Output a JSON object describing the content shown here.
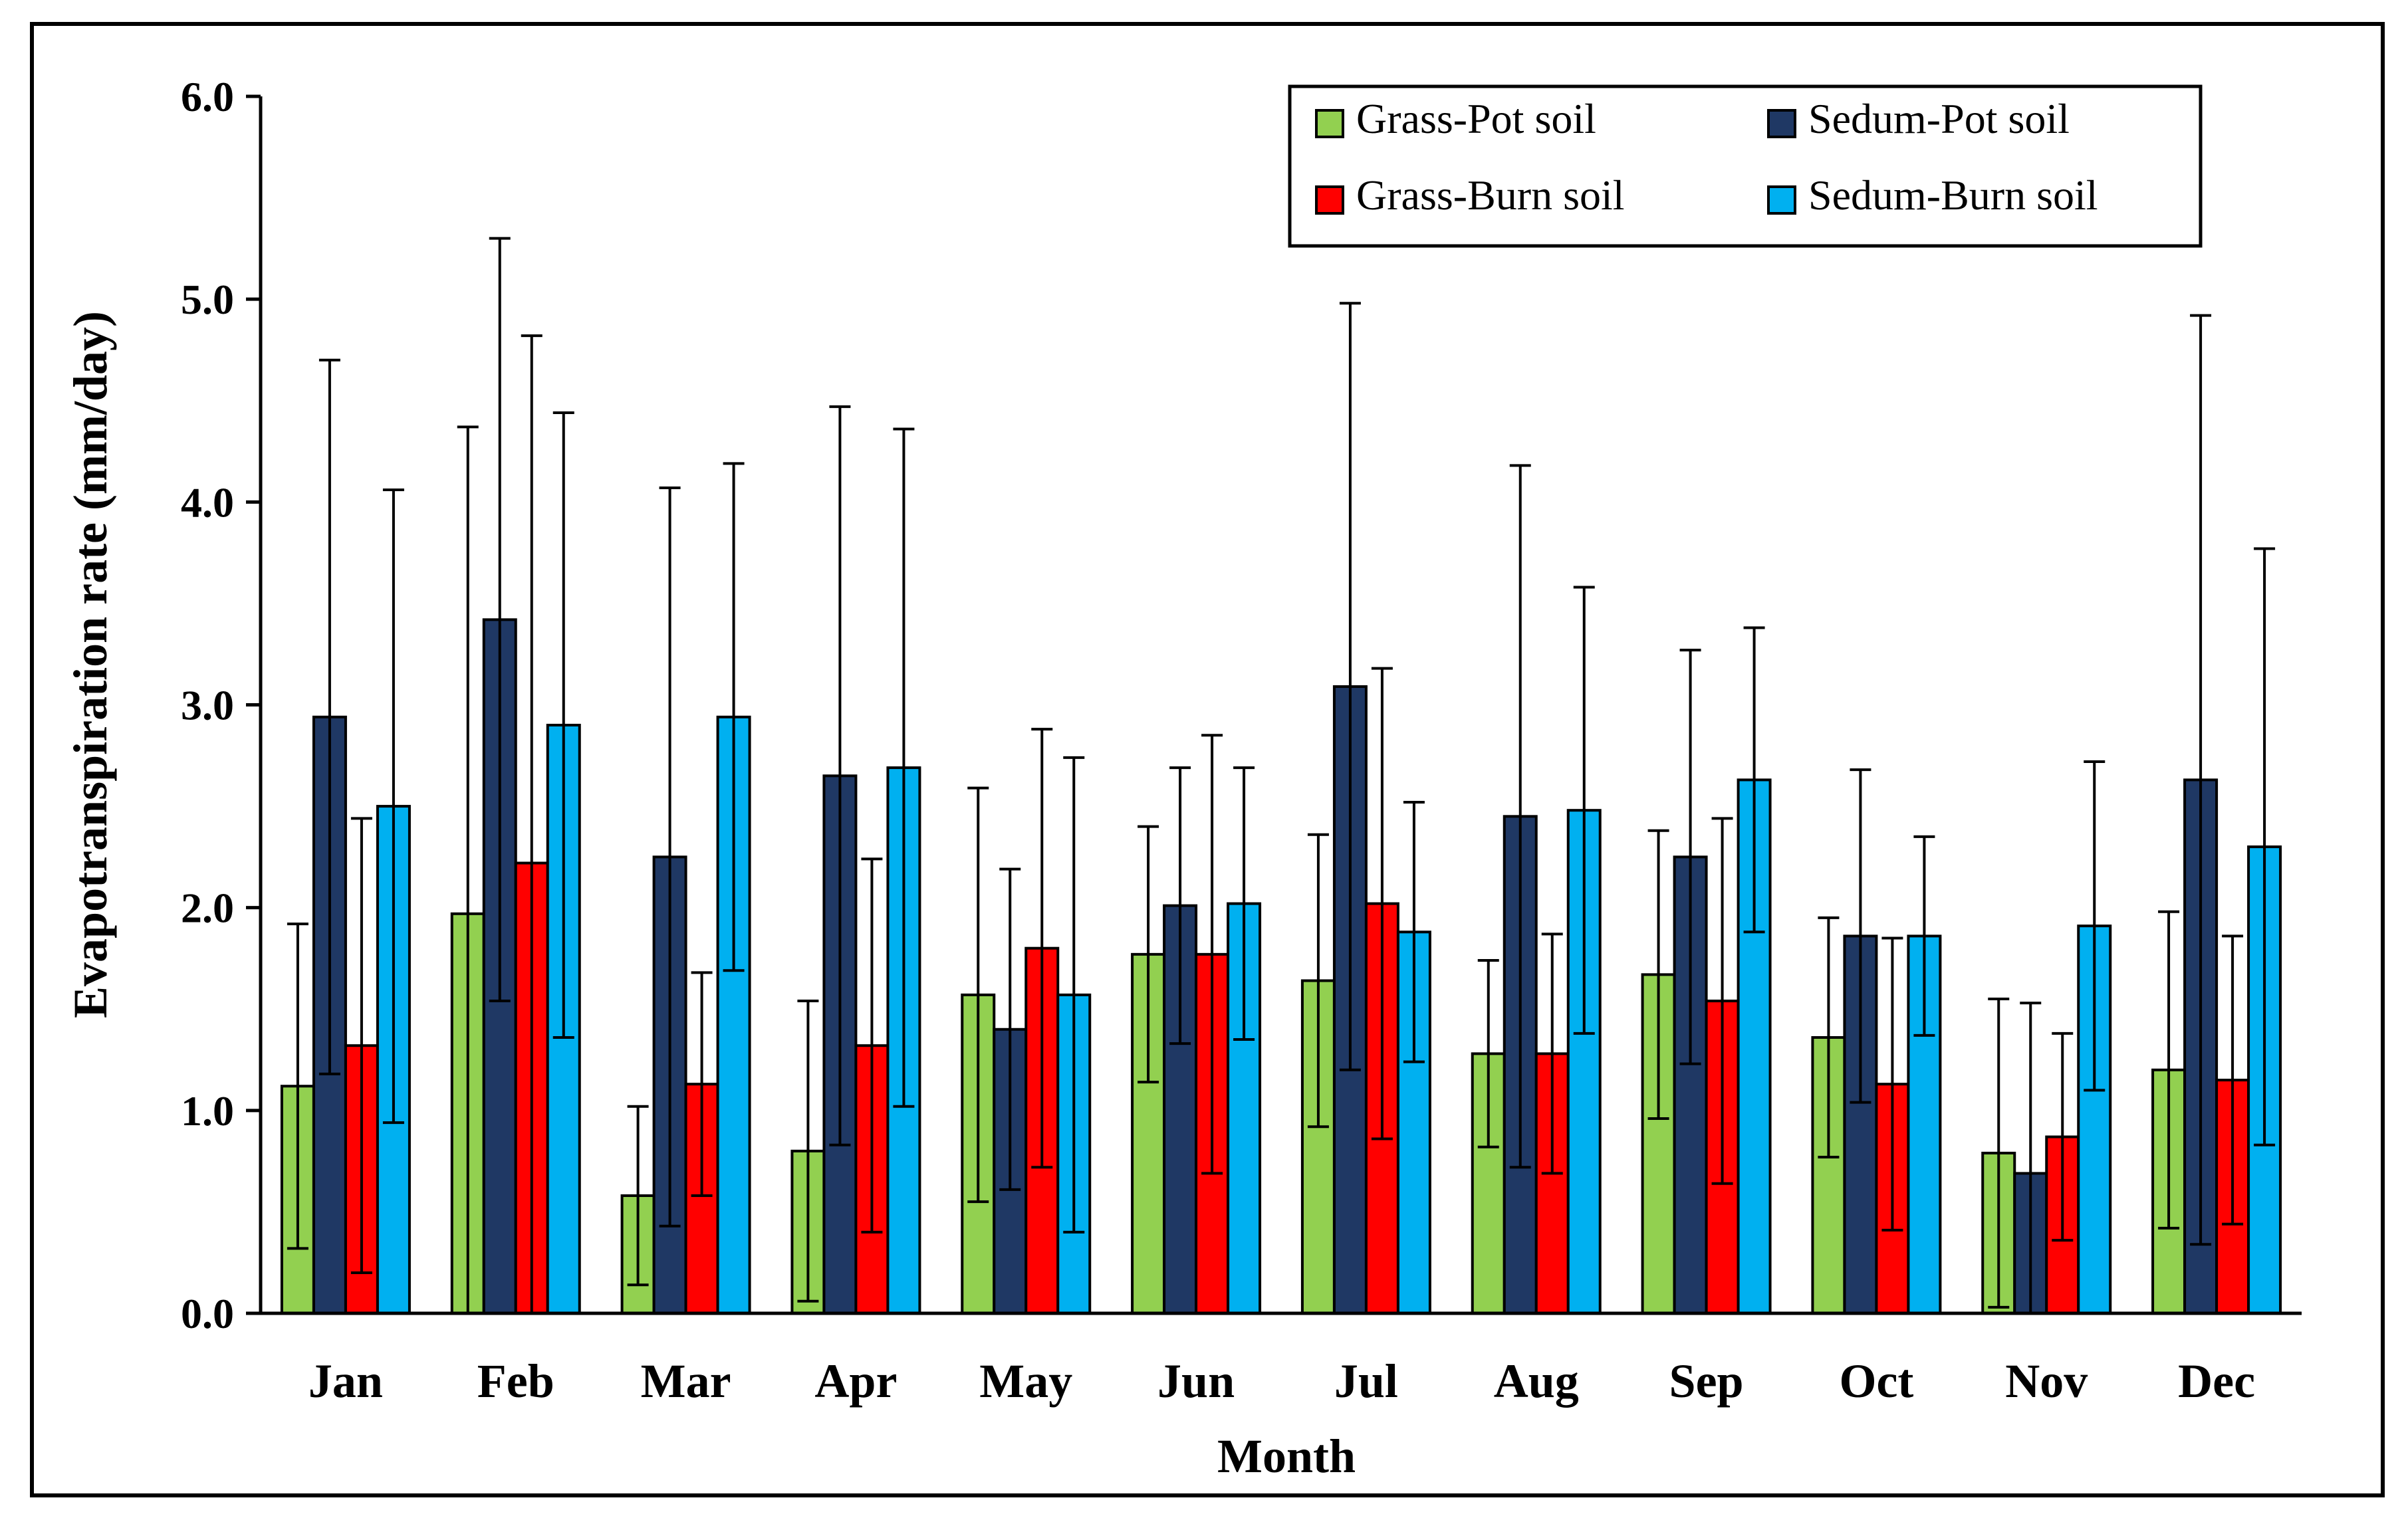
{
  "chart_data": {
    "type": "bar",
    "title": "",
    "xlabel": "Month",
    "ylabel": "Evapotranspiration rate (mm/day)",
    "ylim": [
      0,
      6
    ],
    "yticks": [
      "0.0",
      "1.0",
      "2.0",
      "3.0",
      "4.0",
      "5.0",
      "6.0"
    ],
    "grid": false,
    "legend_position": "top-right",
    "categories": [
      "Jan",
      "Feb",
      "Mar",
      "Apr",
      "May",
      "Jun",
      "Jul",
      "Aug",
      "Sep",
      "Oct",
      "Nov",
      "Dec"
    ],
    "series": [
      {
        "name": "Grass-Pot soil",
        "color": "#92D050",
        "values": [
          1.12,
          1.97,
          0.58,
          0.8,
          1.57,
          1.77,
          1.64,
          1.28,
          1.67,
          1.36,
          0.79,
          1.2
        ],
        "errors": [
          0.8,
          2.4,
          0.44,
          0.74,
          1.02,
          0.63,
          0.72,
          0.46,
          0.71,
          0.59,
          0.76,
          0.78
        ]
      },
      {
        "name": "Grass-Burn soil",
        "color": "#FF0000",
        "values": [
          1.32,
          2.22,
          1.13,
          1.32,
          1.8,
          1.77,
          2.02,
          1.28,
          1.54,
          1.13,
          0.87,
          1.15
        ],
        "errors": [
          1.12,
          2.6,
          0.55,
          0.92,
          1.08,
          1.08,
          1.16,
          0.59,
          0.9,
          0.72,
          0.51,
          0.71
        ]
      },
      {
        "name": "Sedum-Pot soil",
        "color": "#1F3864",
        "values": [
          2.94,
          3.42,
          2.25,
          2.65,
          1.4,
          2.01,
          3.09,
          2.45,
          2.25,
          1.86,
          0.69,
          2.63
        ],
        "errors": [
          1.76,
          1.88,
          1.82,
          1.82,
          0.79,
          0.68,
          1.89,
          1.73,
          1.02,
          0.82,
          0.84,
          2.29
        ]
      },
      {
        "name": "Sedum-Burn soil",
        "color": "#00B0F0",
        "values": [
          2.5,
          2.9,
          2.94,
          2.69,
          1.57,
          2.02,
          1.88,
          2.48,
          2.63,
          1.86,
          1.91,
          2.3
        ],
        "errors": [
          1.56,
          1.54,
          1.25,
          1.67,
          1.17,
          0.67,
          0.64,
          1.1,
          0.75,
          0.49,
          0.81,
          1.47
        ]
      }
    ],
    "bar_order": [
      "Grass-Pot soil",
      "Sedum-Pot soil",
      "Grass-Burn soil",
      "Sedum-Burn soil"
    ],
    "legend_order": [
      "Grass-Pot soil",
      "Sedum-Pot soil",
      "Grass-Burn soil",
      "Sedum-Burn soil"
    ]
  }
}
